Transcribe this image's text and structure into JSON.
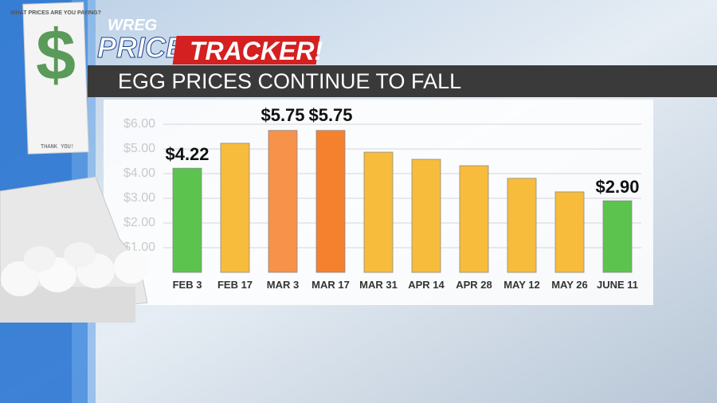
{
  "header": {
    "station": "WREG",
    "brand_1": "PRICE",
    "brand_2": "TRACKER!"
  },
  "receipt": {
    "heading": "WHAT PRICES ARE YOU PAYING?",
    "symbol": "$",
    "footer": "THANK YOU!"
  },
  "chart_data": {
    "type": "bar",
    "title": "EGG PRICES CONTINUE TO FALL",
    "categories": [
      "FEB 3",
      "FEB 17",
      "MAR 3",
      "MAR 17",
      "MAR 31",
      "APR 14",
      "APR 28",
      "MAY 12",
      "MAY 26",
      "JUNE  11"
    ],
    "values": [
      4.22,
      5.23,
      5.75,
      5.75,
      4.87,
      4.58,
      4.32,
      3.81,
      3.26,
      2.9
    ],
    "value_labels": [
      "$4.22",
      null,
      "$5.75",
      "$5.75",
      null,
      null,
      null,
      null,
      null,
      "$2.90"
    ],
    "colors": [
      "#5cc44e",
      "#f8bc3c",
      "#f7924a",
      "#f5812e",
      "#f8bc3c",
      "#f8bc3c",
      "#f8bc3c",
      "#f8bc3c",
      "#f8bc3c",
      "#5cc44e"
    ],
    "ylim": [
      0,
      6
    ],
    "yticks": [
      {
        "value": 1,
        "label": "$1.00"
      },
      {
        "value": 2,
        "label": "$2.00"
      },
      {
        "value": 3,
        "label": "$3.00"
      },
      {
        "value": 4,
        "label": "$4.00"
      },
      {
        "value": 5,
        "label": "$5.00"
      },
      {
        "value": 6,
        "label": "$6.00"
      }
    ],
    "grid": true
  }
}
